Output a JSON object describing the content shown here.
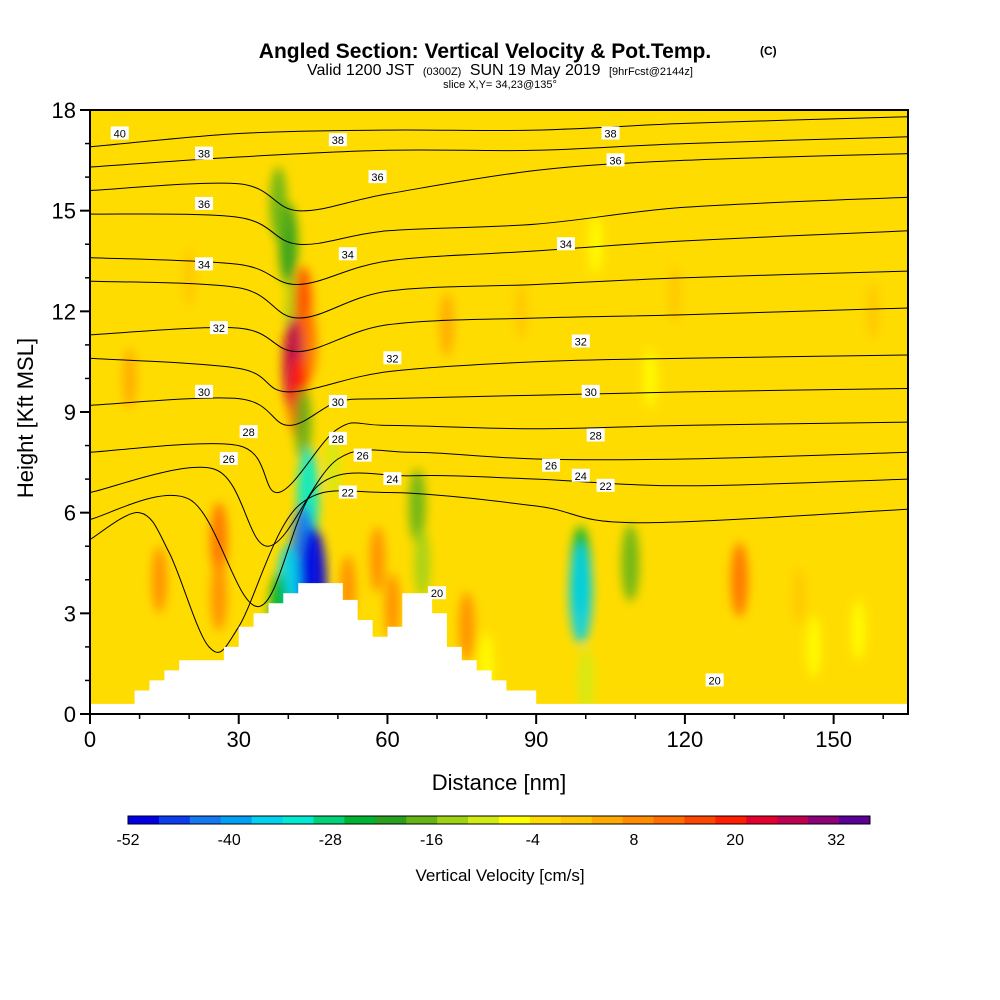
{
  "chart_data": {
    "type": "heatmap",
    "title": "Angled Section: Vertical Velocity & Pot.Temp.",
    "title_mark": "(C)",
    "subtitle": {
      "valid": "Valid 1200 JST",
      "zulu": "(0300Z)",
      "date": "SUN 19 May 2019",
      "forecast": "[9hrFcst@2144z]"
    },
    "slice_text": "slice X,Y= 34,23@135°",
    "xlabel": "Distance [nm]",
    "ylabel": "Height [Kft MSL]",
    "xlim": [
      0,
      165
    ],
    "ylim": [
      0,
      18
    ],
    "x_ticks": [
      "0",
      "30",
      "60",
      "90",
      "120",
      "150"
    ],
    "y_ticks": [
      "0",
      "3",
      "6",
      "9",
      "12",
      "15",
      "18"
    ],
    "grid": false,
    "colorbar": {
      "title": "Vertical Velocity [cm/s]",
      "range": [
        -52,
        36
      ],
      "step": 4,
      "tick_labels": [
        "-52",
        "-40",
        "-28",
        "-16",
        "-4",
        "8",
        "20",
        "32"
      ],
      "colors": [
        "#0000e6",
        "#0a3cf0",
        "#1478f0",
        "#00a0f5",
        "#00d2f0",
        "#00ebd2",
        "#00d278",
        "#00b432",
        "#28a01e",
        "#64b414",
        "#a0d214",
        "#d2eb14",
        "#ffff00",
        "#ffdc00",
        "#ffc800",
        "#ffaa00",
        "#ff8c00",
        "#ff6e00",
        "#ff4600",
        "#ff1e00",
        "#e6002d",
        "#be0050",
        "#8c0078",
        "#5a0096"
      ]
    },
    "background_value": 2,
    "features": [
      {
        "x": 14,
        "y": 4.0,
        "value": 12
      },
      {
        "x": 26,
        "y": 5.2,
        "value": 18
      },
      {
        "x": 26,
        "y": 3.5,
        "value": 14
      },
      {
        "x": 40,
        "y": 14.0,
        "value": -20
      },
      {
        "x": 38,
        "y": 15.2,
        "value": -14
      },
      {
        "x": 41,
        "y": 12.0,
        "value": -10
      },
      {
        "x": 43,
        "y": 12.2,
        "value": 20
      },
      {
        "x": 44,
        "y": 11.0,
        "value": 18
      },
      {
        "x": 41,
        "y": 10.4,
        "value": 32
      },
      {
        "x": 42,
        "y": 9.4,
        "value": 24
      },
      {
        "x": 43,
        "y": 8.6,
        "value": -14
      },
      {
        "x": 44,
        "y": 6.5,
        "value": -30
      },
      {
        "x": 43,
        "y": 4.5,
        "value": -44
      },
      {
        "x": 40,
        "y": 3.5,
        "value": -36
      },
      {
        "x": 45,
        "y": 3.8,
        "value": -50
      },
      {
        "x": 38,
        "y": 2.9,
        "value": -22
      },
      {
        "x": 49,
        "y": 7.4,
        "value": -6
      },
      {
        "x": 52,
        "y": 3.7,
        "value": 14
      },
      {
        "x": 58,
        "y": 4.6,
        "value": 12
      },
      {
        "x": 61,
        "y": 3.2,
        "value": 12
      },
      {
        "x": 66,
        "y": 6.2,
        "value": -14
      },
      {
        "x": 67,
        "y": 4.5,
        "value": -10
      },
      {
        "x": 76,
        "y": 2.6,
        "value": 14
      },
      {
        "x": 72,
        "y": 11.6,
        "value": 10
      },
      {
        "x": 80,
        "y": 1.5,
        "value": -4
      },
      {
        "x": 87,
        "y": 12.0,
        "value": 6
      },
      {
        "x": 99,
        "y": 4.3,
        "value": -24
      },
      {
        "x": 99,
        "y": 3.6,
        "value": -34
      },
      {
        "x": 100,
        "y": 1.0,
        "value": -8
      },
      {
        "x": 102,
        "y": 14.0,
        "value": -2
      },
      {
        "x": 109,
        "y": 4.5,
        "value": -16
      },
      {
        "x": 113,
        "y": 10.0,
        "value": -2
      },
      {
        "x": 118,
        "y": 12.5,
        "value": 6
      },
      {
        "x": 131,
        "y": 4.0,
        "value": 18
      },
      {
        "x": 143,
        "y": 3.5,
        "value": 6
      },
      {
        "x": 146,
        "y": 2.0,
        "value": -4
      },
      {
        "x": 155,
        "y": 2.5,
        "value": -4
      },
      {
        "x": 158,
        "y": 12.0,
        "value": 6
      },
      {
        "x": 20,
        "y": 13.0,
        "value": 6
      },
      {
        "x": 8,
        "y": 10.0,
        "value": 8
      }
    ],
    "terrain": {
      "x": [
        0,
        9,
        12,
        15,
        18,
        21,
        27,
        30,
        33,
        36,
        39,
        42,
        45,
        48,
        51,
        54,
        57,
        60,
        63,
        66,
        69,
        72,
        75,
        78,
        81,
        84,
        87,
        90,
        165
      ],
      "y": [
        0.3,
        0.7,
        1.0,
        1.3,
        1.6,
        1.6,
        2.0,
        2.6,
        3.0,
        3.3,
        3.6,
        3.9,
        3.9,
        3.9,
        3.4,
        2.8,
        2.3,
        2.6,
        3.6,
        3.6,
        3.0,
        2.0,
        1.6,
        1.3,
        1.0,
        0.7,
        0.7,
        0.3,
        0.3
      ]
    },
    "theta_contours": [
      {
        "x": [
          0,
          30,
          60,
          90,
          120,
          165
        ],
        "y": [
          16.9,
          17.3,
          17.4,
          17.4,
          17.6,
          17.8
        ]
      },
      {
        "x": [
          0,
          30,
          60,
          90,
          120,
          165
        ],
        "y": [
          16.3,
          16.6,
          16.8,
          16.8,
          17.0,
          17.2
        ]
      },
      {
        "x": [
          0,
          30,
          42,
          60,
          90,
          120,
          165
        ],
        "y": [
          15.6,
          15.8,
          15.0,
          15.5,
          16.2,
          16.5,
          16.7
        ]
      },
      {
        "x": [
          0,
          30,
          42,
          60,
          90,
          120,
          165
        ],
        "y": [
          14.9,
          14.8,
          14.0,
          14.4,
          14.6,
          15.1,
          15.4
        ]
      },
      {
        "x": [
          0,
          30,
          42,
          60,
          90,
          120,
          165
        ],
        "y": [
          13.6,
          13.4,
          12.8,
          13.5,
          13.8,
          14.1,
          14.4
        ]
      },
      {
        "x": [
          0,
          30,
          42,
          60,
          90,
          120,
          165
        ],
        "y": [
          12.9,
          12.7,
          11.8,
          12.6,
          12.8,
          13.0,
          13.2
        ]
      },
      {
        "x": [
          0,
          30,
          42,
          60,
          90,
          120,
          165
        ],
        "y": [
          11.3,
          11.5,
          10.8,
          11.6,
          11.8,
          11.9,
          12.1
        ]
      },
      {
        "x": [
          0,
          30,
          40,
          60,
          90,
          120,
          165
        ],
        "y": [
          10.6,
          10.3,
          9.6,
          10.2,
          10.5,
          10.6,
          10.7
        ]
      },
      {
        "x": [
          0,
          30,
          40,
          50,
          60,
          90,
          120,
          165
        ],
        "y": [
          9.2,
          9.4,
          8.6,
          9.3,
          9.4,
          9.5,
          9.6,
          9.7
        ]
      },
      {
        "x": [
          0,
          30,
          38,
          50,
          60,
          90,
          120,
          165
        ],
        "y": [
          7.8,
          8.0,
          6.6,
          8.5,
          8.6,
          8.5,
          8.6,
          8.7
        ]
      },
      {
        "x": [
          0,
          25,
          36,
          50,
          65,
          90,
          120,
          165
        ],
        "y": [
          6.6,
          7.3,
          5.0,
          7.6,
          7.8,
          7.6,
          7.6,
          7.8
        ]
      },
      {
        "x": [
          0,
          20,
          34,
          46,
          65,
          90,
          120,
          165
        ],
        "y": [
          5.8,
          6.4,
          3.2,
          6.8,
          7.1,
          7.0,
          6.8,
          7.0
        ]
      },
      {
        "x": [
          0,
          10,
          16,
          24,
          30,
          42,
          60,
          90,
          110,
          165
        ],
        "y": [
          5.2,
          6.0,
          4.8,
          2.0,
          2.6,
          6.2,
          6.6,
          6.2,
          5.7,
          6.1
        ]
      }
    ],
    "theta_labels": [
      {
        "text": "40",
        "x": 6,
        "y": 17.3
      },
      {
        "text": "38",
        "x": 23,
        "y": 16.7
      },
      {
        "text": "38",
        "x": 50,
        "y": 17.1
      },
      {
        "text": "38",
        "x": 105,
        "y": 17.3
      },
      {
        "text": "36",
        "x": 23,
        "y": 15.2
      },
      {
        "text": "36",
        "x": 58,
        "y": 16.0
      },
      {
        "text": "36",
        "x": 106,
        "y": 16.5
      },
      {
        "text": "34",
        "x": 23,
        "y": 13.4
      },
      {
        "text": "34",
        "x": 52,
        "y": 13.7
      },
      {
        "text": "34",
        "x": 96,
        "y": 14.0
      },
      {
        "text": "32",
        "x": 26,
        "y": 11.5
      },
      {
        "text": "32",
        "x": 61,
        "y": 10.6
      },
      {
        "text": "32",
        "x": 99,
        "y": 11.1
      },
      {
        "text": "30",
        "x": 23,
        "y": 9.6
      },
      {
        "text": "30",
        "x": 50,
        "y": 9.3
      },
      {
        "text": "30",
        "x": 101,
        "y": 9.6
      },
      {
        "text": "28",
        "x": 32,
        "y": 8.4
      },
      {
        "text": "28",
        "x": 50,
        "y": 8.2
      },
      {
        "text": "28",
        "x": 102,
        "y": 8.3
      },
      {
        "text": "26",
        "x": 28,
        "y": 7.6
      },
      {
        "text": "26",
        "x": 55,
        "y": 7.7
      },
      {
        "text": "26",
        "x": 93,
        "y": 7.4
      },
      {
        "text": "24",
        "x": 61,
        "y": 7.0
      },
      {
        "text": "24",
        "x": 99,
        "y": 7.1
      },
      {
        "text": "22",
        "x": 52,
        "y": 6.6
      },
      {
        "text": "22",
        "x": 104,
        "y": 6.8
      },
      {
        "text": "20",
        "x": 70,
        "y": 3.6
      },
      {
        "text": "20",
        "x": 126,
        "y": 1.0
      }
    ]
  }
}
